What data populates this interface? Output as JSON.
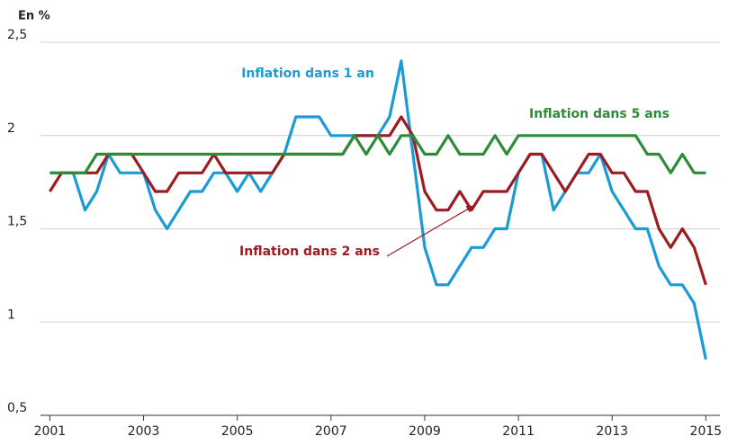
{
  "chart_data": {
    "type": "line",
    "y_label": "En %",
    "x": [
      2001,
      2001.25,
      2001.5,
      2001.75,
      2002,
      2002.25,
      2002.5,
      2002.75,
      2003,
      2003.25,
      2003.5,
      2003.75,
      2004,
      2004.25,
      2004.5,
      2004.75,
      2005,
      2005.25,
      2005.5,
      2005.75,
      2006,
      2006.25,
      2006.5,
      2006.75,
      2007,
      2007.25,
      2007.5,
      2007.75,
      2008,
      2008.25,
      2008.5,
      2008.75,
      2009,
      2009.25,
      2009.5,
      2009.75,
      2010,
      2010.25,
      2010.5,
      2010.75,
      2011,
      2011.25,
      2011.5,
      2011.75,
      2012,
      2012.25,
      2012.5,
      2012.75,
      2013,
      2013.25,
      2013.5,
      2013.75,
      2014,
      2014.25,
      2014.5,
      2014.75,
      2015
    ],
    "series": [
      {
        "name": "Inflation dans 1 an",
        "color": "#1b9ad6",
        "values": [
          1.8,
          1.8,
          1.8,
          1.6,
          1.7,
          1.9,
          1.8,
          1.8,
          1.8,
          1.6,
          1.5,
          1.6,
          1.7,
          1.7,
          1.8,
          1.8,
          1.7,
          1.8,
          1.7,
          1.8,
          1.9,
          2.1,
          2.1,
          2.1,
          2.0,
          2.0,
          2.0,
          2.0,
          2.0,
          2.1,
          2.4,
          1.9,
          1.4,
          1.2,
          1.2,
          1.3,
          1.4,
          1.4,
          1.5,
          1.5,
          1.8,
          1.9,
          1.9,
          1.6,
          1.7,
          1.8,
          1.8,
          1.9,
          1.7,
          1.6,
          1.5,
          1.5,
          1.3,
          1.2,
          1.2,
          1.1,
          0.8
        ]
      },
      {
        "name": "Inflation dans 2 ans",
        "color": "#9c1c22",
        "values": [
          1.7,
          1.8,
          1.8,
          1.8,
          1.8,
          1.9,
          1.9,
          1.9,
          1.8,
          1.7,
          1.7,
          1.8,
          1.8,
          1.8,
          1.9,
          1.8,
          1.8,
          1.8,
          1.8,
          1.8,
          1.9,
          1.9,
          1.9,
          1.9,
          1.9,
          1.9,
          2.0,
          2.0,
          2.0,
          2.0,
          2.1,
          2.0,
          1.7,
          1.6,
          1.6,
          1.7,
          1.6,
          1.7,
          1.7,
          1.7,
          1.8,
          1.9,
          1.9,
          1.8,
          1.7,
          1.8,
          1.9,
          1.9,
          1.8,
          1.8,
          1.7,
          1.7,
          1.5,
          1.4,
          1.5,
          1.4,
          1.2
        ]
      },
      {
        "name": "Inflation dans 5 ans",
        "color": "#2e8b3a",
        "values": [
          1.8,
          1.8,
          1.8,
          1.8,
          1.9,
          1.9,
          1.9,
          1.9,
          1.9,
          1.9,
          1.9,
          1.9,
          1.9,
          1.9,
          1.9,
          1.9,
          1.9,
          1.9,
          1.9,
          1.9,
          1.9,
          1.9,
          1.9,
          1.9,
          1.9,
          1.9,
          2.0,
          1.9,
          2.0,
          1.9,
          2.0,
          2.0,
          1.9,
          1.9,
          2.0,
          1.9,
          1.9,
          1.9,
          2.0,
          1.9,
          2.0,
          2.0,
          2.0,
          2.0,
          2.0,
          2.0,
          2.0,
          2.0,
          2.0,
          2.0,
          2.0,
          1.9,
          1.9,
          1.8,
          1.9,
          1.8,
          1.8
        ]
      }
    ],
    "xlim": [
      2000.8,
      2015.3
    ],
    "xticks": [
      2001,
      2003,
      2005,
      2007,
      2009,
      2011,
      2013,
      2015
    ],
    "ylim": [
      0.5,
      2.5
    ],
    "yticks": [
      {
        "value": 0.5,
        "label": "0,5"
      },
      1,
      {
        "value": 1.5,
        "label": "1,5"
      },
      2,
      {
        "value": 2.5,
        "label": "2,5"
      }
    ],
    "grid": true
  }
}
